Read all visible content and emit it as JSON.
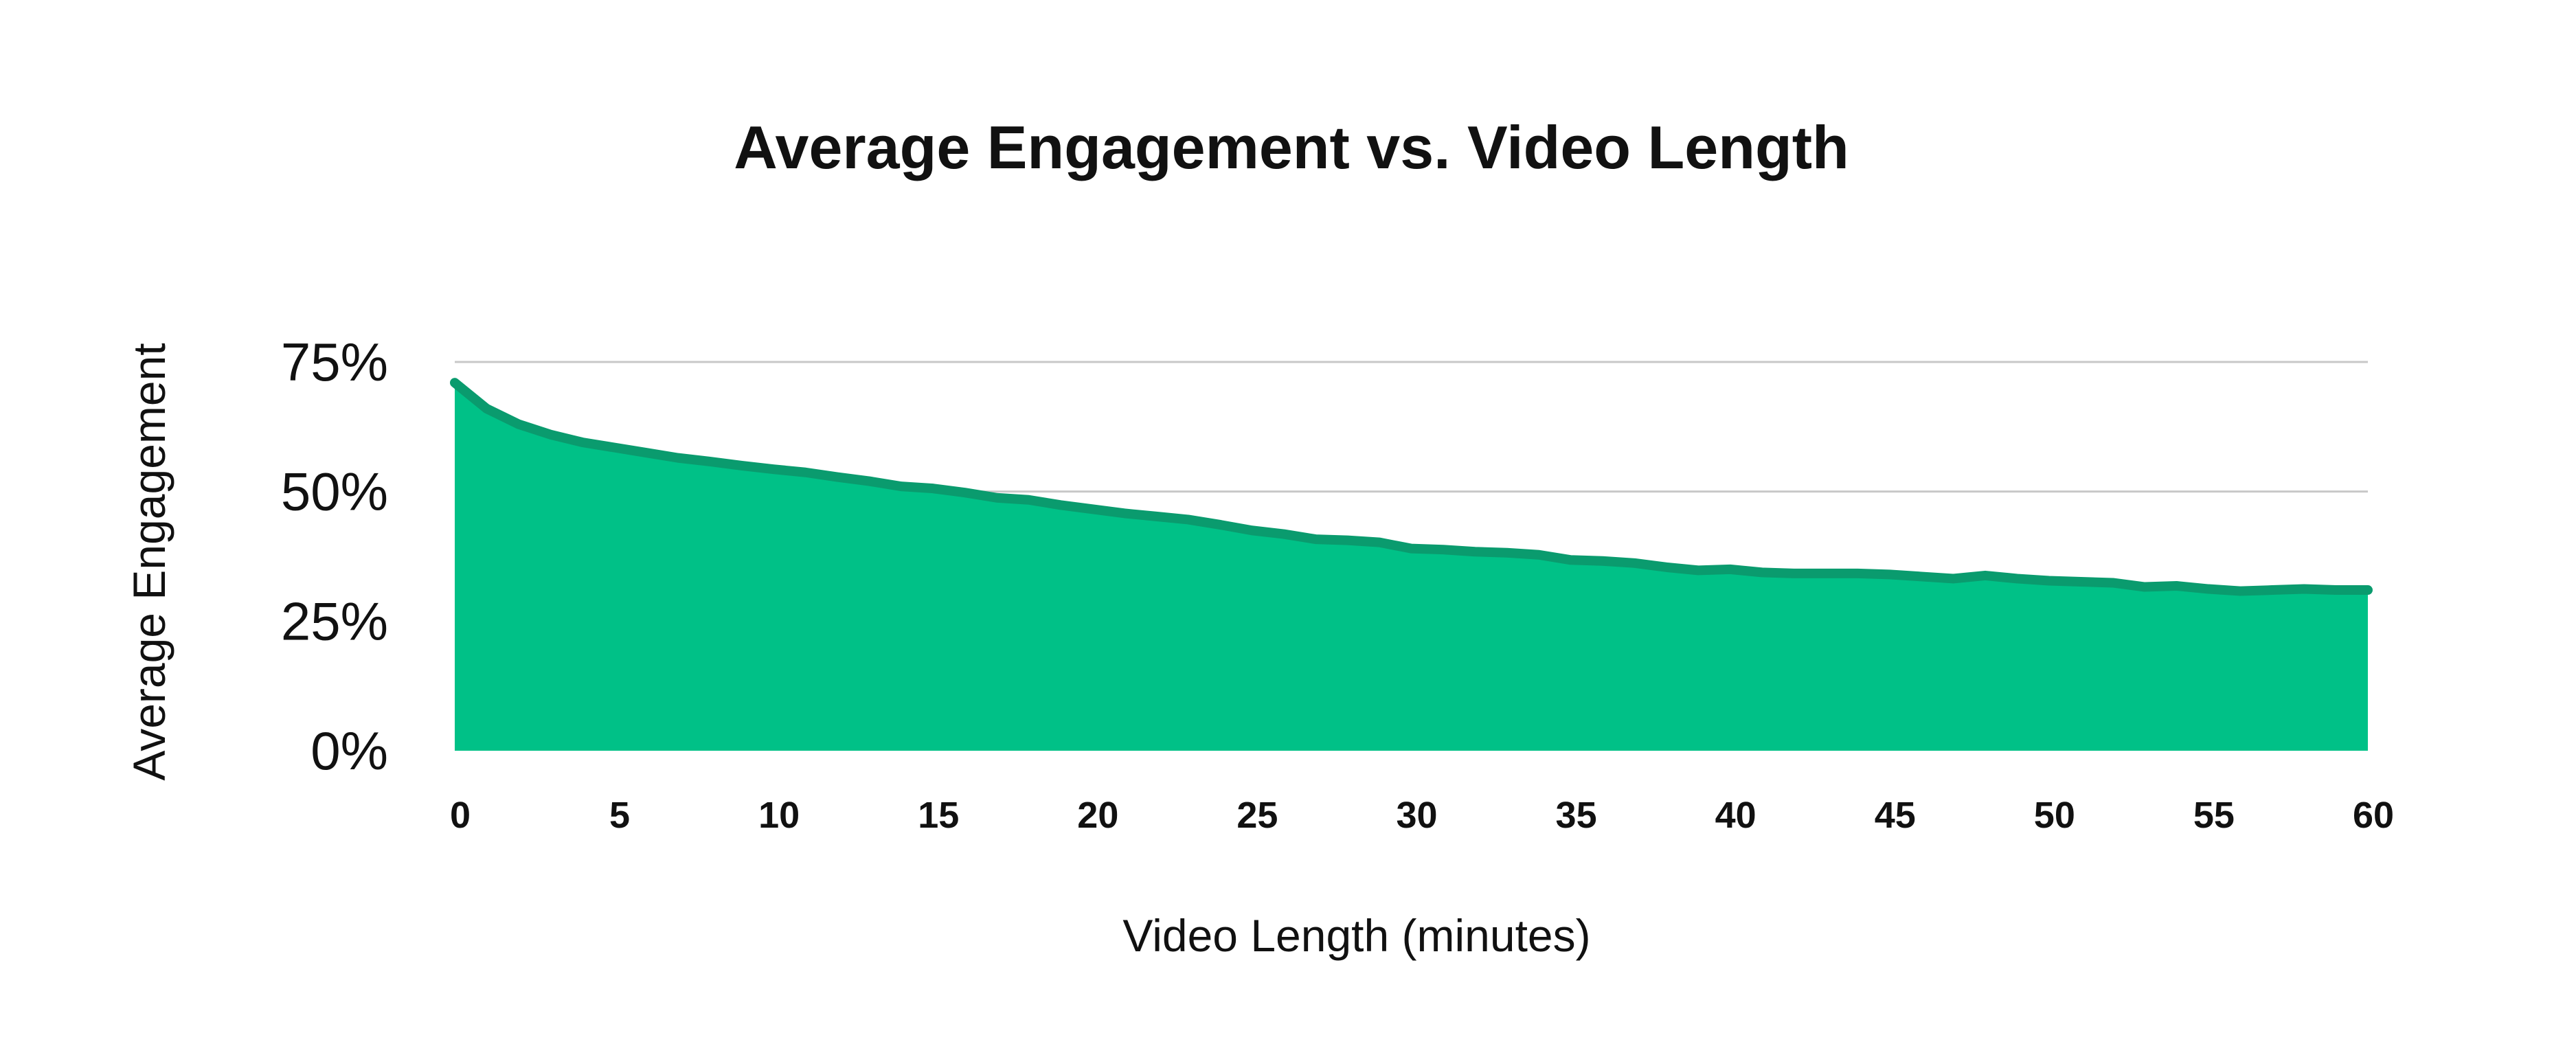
{
  "colors": {
    "area_fill": "#00c187",
    "line_stroke": "#0a9b6e",
    "grid": "#c8c8c8",
    "text": "#111111",
    "background": "#ffffff"
  },
  "chart_data": {
    "type": "area",
    "title": "Average Engagement vs. Video Length",
    "xlabel": "Video Length (minutes)",
    "ylabel": "Average Engagement",
    "xlim": [
      0,
      60
    ],
    "ylim": [
      0,
      75
    ],
    "x_ticks": [
      "0",
      "5",
      "10",
      "15",
      "20",
      "25",
      "30",
      "35",
      "40",
      "45",
      "50",
      "55",
      "60"
    ],
    "y_ticks": [
      "0%",
      "25%",
      "50%",
      "75%"
    ],
    "grid": "horizontal",
    "legend": "none",
    "series": [
      {
        "x": [
          0,
          1,
          2,
          3,
          4,
          5,
          6,
          7,
          8,
          9,
          10,
          11,
          12,
          13,
          14,
          15,
          16,
          17,
          18,
          19,
          20,
          21,
          22,
          23,
          24,
          25,
          26,
          27,
          28,
          29,
          30,
          31,
          32,
          33,
          34,
          35,
          36,
          37,
          38,
          39,
          40,
          41,
          42,
          43,
          44,
          45,
          46,
          47,
          48,
          49,
          50,
          51,
          52,
          53,
          54,
          55,
          56,
          57,
          58,
          59,
          60
        ],
        "y": [
          71,
          66,
          63,
          61,
          59.5,
          58.5,
          57.5,
          56.5,
          55.8,
          55,
          54.3,
          53.7,
          52.8,
          52,
          51,
          50.6,
          49.8,
          48.8,
          48.4,
          47.4,
          46.6,
          45.8,
          45.2,
          44.6,
          43.6,
          42.5,
          41.8,
          40.8,
          40.6,
          40.2,
          39,
          38.8,
          38.4,
          38.2,
          37.8,
          36.8,
          36.6,
          36.2,
          35.4,
          34.8,
          35,
          34.4,
          34.2,
          34.2,
          34.2,
          34,
          33.6,
          33.2,
          33.8,
          33.2,
          32.8,
          32.6,
          32.4,
          31.6,
          31.8,
          31.2,
          30.8,
          31,
          31.2,
          31,
          31
        ]
      }
    ]
  }
}
